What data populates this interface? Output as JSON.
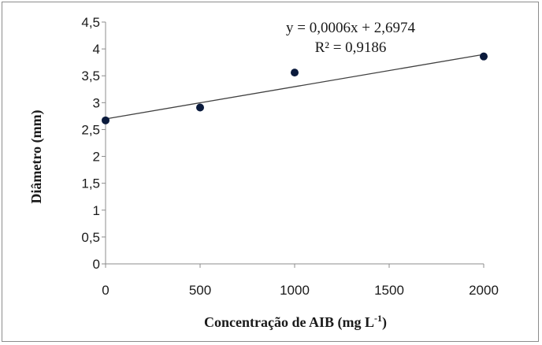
{
  "chart_data": {
    "type": "scatter",
    "xlabel": "Concentração de AIB (mg L",
    "xlabel_sup": "-1",
    "xlabel_end": ")",
    "ylabel": "Diâmetro (mm)",
    "xlim": [
      0,
      2000
    ],
    "ylim": [
      0,
      4.5
    ],
    "x_ticks": [
      0,
      500,
      1000,
      1500,
      2000
    ],
    "x_tick_labels": [
      "0",
      "500",
      "1000",
      "1500",
      "2000"
    ],
    "y_ticks": [
      0,
      0.5,
      1,
      1.5,
      2,
      2.5,
      3,
      3.5,
      4,
      4.5
    ],
    "y_tick_labels": [
      "0",
      "0,5",
      "1",
      "1,5",
      "2",
      "2,5",
      "3",
      "3,5",
      "4",
      "4,5"
    ],
    "grid": false,
    "series": [
      {
        "x": [
          0,
          500,
          1000,
          2000
        ],
        "y": [
          2.67,
          2.91,
          3.56,
          3.86
        ],
        "color": "#0a1a3c"
      }
    ],
    "trendline": {
      "slope": 0.0006,
      "intercept": 2.6974,
      "color": "#404040"
    },
    "equation": "y = 0,0006x  + 2,6974",
    "r_squared": "R² = 0,9186"
  }
}
